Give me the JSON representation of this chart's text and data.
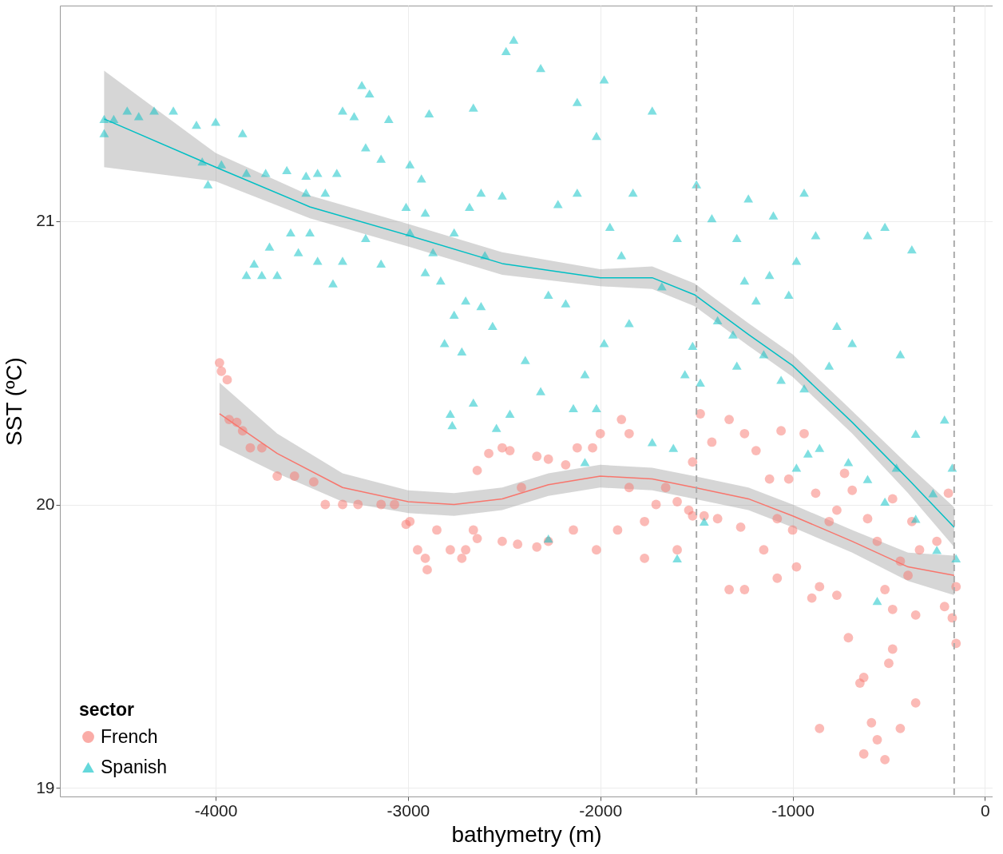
{
  "chart_data": {
    "type": "scatter",
    "xlabel": "bathymetry (m)",
    "ylabel": "SST (ºC)",
    "legend_title": "sector",
    "legend": "bottom left",
    "grid": true,
    "xlim": [
      -4810,
      40
    ],
    "ylim": [
      18.97,
      21.76
    ],
    "xticks": [
      -4000,
      -3000,
      -2000,
      -1000,
      0
    ],
    "yticks": [
      19,
      20,
      21
    ],
    "ref_lines": [
      {
        "axis": "x",
        "value": -1500,
        "line_style": "dashed",
        "color": "#aaaaaa"
      },
      {
        "axis": "x",
        "value": -160,
        "line_style": "dashed",
        "color": "#aaaaaa"
      }
    ],
    "series": [
      {
        "name": "French",
        "color": "#f8766d",
        "marker": "circle",
        "x": [
          -3980,
          -3970,
          -3940,
          -3930,
          -3890,
          -3860,
          -3820,
          -3760,
          -3680,
          -3590,
          -3490,
          -3430,
          -3340,
          -3260,
          -3140,
          -3070,
          -3010,
          -2990,
          -2950,
          -2910,
          -2900,
          -2850,
          -2780,
          -2720,
          -2660,
          -2640,
          -2580,
          -2510,
          -2470,
          -2410,
          -2330,
          -2270,
          -2180,
          -2120,
          -2040,
          -2000,
          -1890,
          -1850,
          -1850,
          -1910,
          -2020,
          -2140,
          -2270,
          -2330,
          -2430,
          -2510,
          -2640,
          -2700,
          -1770,
          -1710,
          -1660,
          -1600,
          -1540,
          -1520,
          -1480,
          -1420,
          -1330,
          -1250,
          -1190,
          -1120,
          -1080,
          -1060,
          -1020,
          -940,
          -880,
          -810,
          -770,
          -730,
          -690,
          -610,
          -560,
          -480,
          -440,
          -400,
          -380,
          -340,
          -250,
          -190,
          -150,
          -210,
          -170,
          -150,
          -360,
          -480,
          -520,
          -480,
          -500,
          -630,
          -650,
          -710,
          -770,
          -860,
          -900,
          -980,
          -1080,
          -1250,
          -1330,
          -1150,
          -1000,
          -1270,
          -1390,
          -1460,
          -1520,
          -1600,
          -1770,
          -860,
          -630,
          -590,
          -560,
          -520,
          -440,
          -360
        ],
        "values": [
          20.5,
          20.47,
          20.44,
          20.3,
          20.29,
          20.26,
          20.2,
          20.2,
          20.1,
          20.1,
          20.08,
          20.0,
          20.0,
          20.0,
          20.0,
          20.0,
          19.93,
          19.94,
          19.84,
          19.81,
          19.77,
          19.91,
          19.84,
          19.81,
          19.91,
          20.12,
          20.18,
          20.2,
          20.19,
          20.06,
          20.17,
          20.16,
          20.14,
          20.2,
          20.2,
          20.25,
          20.3,
          20.25,
          20.06,
          19.91,
          19.84,
          19.91,
          19.87,
          19.85,
          19.86,
          19.87,
          19.88,
          19.84,
          19.94,
          20.0,
          20.06,
          20.01,
          19.98,
          20.15,
          20.32,
          20.22,
          20.3,
          20.25,
          20.19,
          20.09,
          19.95,
          20.26,
          20.09,
          20.25,
          20.04,
          19.94,
          19.98,
          20.11,
          20.05,
          19.95,
          19.87,
          20.02,
          19.8,
          19.75,
          19.94,
          19.84,
          19.87,
          20.04,
          19.71,
          19.64,
          19.6,
          19.51,
          19.61,
          19.63,
          19.7,
          19.49,
          19.44,
          19.39,
          19.37,
          19.53,
          19.68,
          19.71,
          19.67,
          19.78,
          19.74,
          19.7,
          19.7,
          19.84,
          19.91,
          19.92,
          19.95,
          19.96,
          19.96,
          19.84,
          19.81,
          19.21,
          19.12,
          19.23,
          19.17,
          19.1,
          19.21,
          19.3
        ]
      },
      {
        "name": "Spanish",
        "color": "#00bfc4",
        "marker": "triangle",
        "x": [
          -4580,
          -4580,
          -4530,
          -4460,
          -4400,
          -4320,
          -4220,
          -4100,
          -4000,
          -3860,
          -4070,
          -4040,
          -3970,
          -3840,
          -3740,
          -3630,
          -3530,
          -3470,
          -3370,
          -3530,
          -3430,
          -3340,
          -3240,
          -3200,
          -3280,
          -3220,
          -3140,
          -3100,
          -2990,
          -2930,
          -2890,
          -3010,
          -2910,
          -3340,
          -3390,
          -3510,
          -3610,
          -3720,
          -3800,
          -3840,
          -3760,
          -3680,
          -3570,
          -3470,
          -3220,
          -3140,
          -2990,
          -2910,
          -2830,
          -2870,
          -2760,
          -2680,
          -2600,
          -2760,
          -2700,
          -2620,
          -2560,
          -2720,
          -2810,
          -2660,
          -2620,
          -2510,
          -2490,
          -2450,
          -2310,
          -2220,
          -2120,
          -2020,
          -1950,
          -1890,
          -1830,
          -1730,
          -1850,
          -1980,
          -2020,
          -2140,
          -2310,
          -2470,
          -2540,
          -2780,
          -2770,
          -2660,
          -2270,
          -2180,
          -2390,
          -2080,
          -1980,
          -2120,
          -1500,
          -1420,
          -1230,
          -1100,
          -940,
          -880,
          -980,
          -1290,
          -1250,
          -1190,
          -1120,
          -1020,
          -520,
          -380,
          -610,
          -770,
          -690,
          -810,
          -940,
          -1060,
          -1150,
          -1310,
          -1390,
          -1520,
          -1560,
          -1480,
          -1600,
          -1680,
          -1730,
          -1620,
          -1460,
          -440,
          -360,
          -210,
          -170,
          -270,
          -360,
          -520,
          -610,
          -710,
          -860,
          -920,
          -980,
          -150,
          -250,
          -1600,
          -2270,
          -560,
          -2080,
          -1290,
          -460
        ],
        "values": [
          21.36,
          21.31,
          21.36,
          21.39,
          21.37,
          21.39,
          21.39,
          21.34,
          21.35,
          21.31,
          21.21,
          21.13,
          21.2,
          21.17,
          21.17,
          21.18,
          21.16,
          21.17,
          21.17,
          21.1,
          21.1,
          21.39,
          21.48,
          21.45,
          21.37,
          21.26,
          21.22,
          21.36,
          21.2,
          21.15,
          21.38,
          21.05,
          21.03,
          20.86,
          20.78,
          20.96,
          20.96,
          20.91,
          20.85,
          20.81,
          20.81,
          20.81,
          20.89,
          20.86,
          20.94,
          20.85,
          20.96,
          20.82,
          20.79,
          20.89,
          20.96,
          21.05,
          20.88,
          20.67,
          20.72,
          20.7,
          20.63,
          20.54,
          20.57,
          21.4,
          21.1,
          21.09,
          21.6,
          21.64,
          21.54,
          21.06,
          21.1,
          21.3,
          20.98,
          20.88,
          21.1,
          21.39,
          20.64,
          20.57,
          20.34,
          20.34,
          20.4,
          20.32,
          20.27,
          20.32,
          20.28,
          20.36,
          20.74,
          20.71,
          20.51,
          20.46,
          21.5,
          21.42,
          21.13,
          21.01,
          21.08,
          21.02,
          21.1,
          20.95,
          20.86,
          20.94,
          20.79,
          20.72,
          20.81,
          20.74,
          20.98,
          20.9,
          20.95,
          20.63,
          20.57,
          20.49,
          20.41,
          20.44,
          20.53,
          20.6,
          20.65,
          20.56,
          20.46,
          20.43,
          20.94,
          20.77,
          20.22,
          20.2,
          19.94,
          20.53,
          20.25,
          20.3,
          20.13,
          20.04,
          19.95,
          20.01,
          20.09,
          20.15,
          20.2,
          20.18,
          20.13,
          19.81,
          19.84,
          19.81,
          19.88,
          19.66,
          20.15,
          20.49,
          20.13
        ]
      },
      {
        "type": "line",
        "color": "#f8766d",
        "x": [
          -3980,
          -3680,
          -3340,
          -3000,
          -2760,
          -2510,
          -2270,
          -2000,
          -1730,
          -1510,
          -1230,
          -1000,
          -690,
          -400,
          -160
        ],
        "values": [
          20.32,
          20.18,
          20.06,
          20.01,
          20.0,
          20.02,
          20.07,
          20.1,
          20.09,
          20.06,
          20.02,
          19.96,
          19.87,
          19.78,
          19.75
        ],
        "lower": [
          20.21,
          20.11,
          20.01,
          19.97,
          19.96,
          19.98,
          20.03,
          20.06,
          20.05,
          20.02,
          19.98,
          19.92,
          19.83,
          19.73,
          19.68
        ],
        "upper": [
          20.43,
          20.25,
          20.11,
          20.05,
          20.04,
          20.06,
          20.11,
          20.14,
          20.13,
          20.1,
          20.06,
          20.0,
          19.91,
          19.83,
          19.82
        ]
      },
      {
        "type": "line",
        "color": "#00bfc4",
        "x": [
          -4580,
          -4000,
          -3510,
          -3000,
          -2510,
          -2000,
          -1730,
          -1510,
          -1230,
          -1000,
          -690,
          -400,
          -160
        ],
        "values": [
          21.36,
          21.19,
          21.05,
          20.95,
          20.85,
          20.8,
          20.8,
          20.74,
          20.6,
          20.49,
          20.29,
          20.09,
          19.92
        ],
        "lower": [
          21.19,
          21.14,
          21.01,
          20.91,
          20.81,
          20.77,
          20.76,
          20.7,
          20.56,
          20.45,
          20.25,
          20.04,
          19.85
        ],
        "upper": [
          21.53,
          21.24,
          21.09,
          20.99,
          20.89,
          20.83,
          20.84,
          20.78,
          20.64,
          20.53,
          20.33,
          20.14,
          19.99
        ]
      }
    ]
  }
}
